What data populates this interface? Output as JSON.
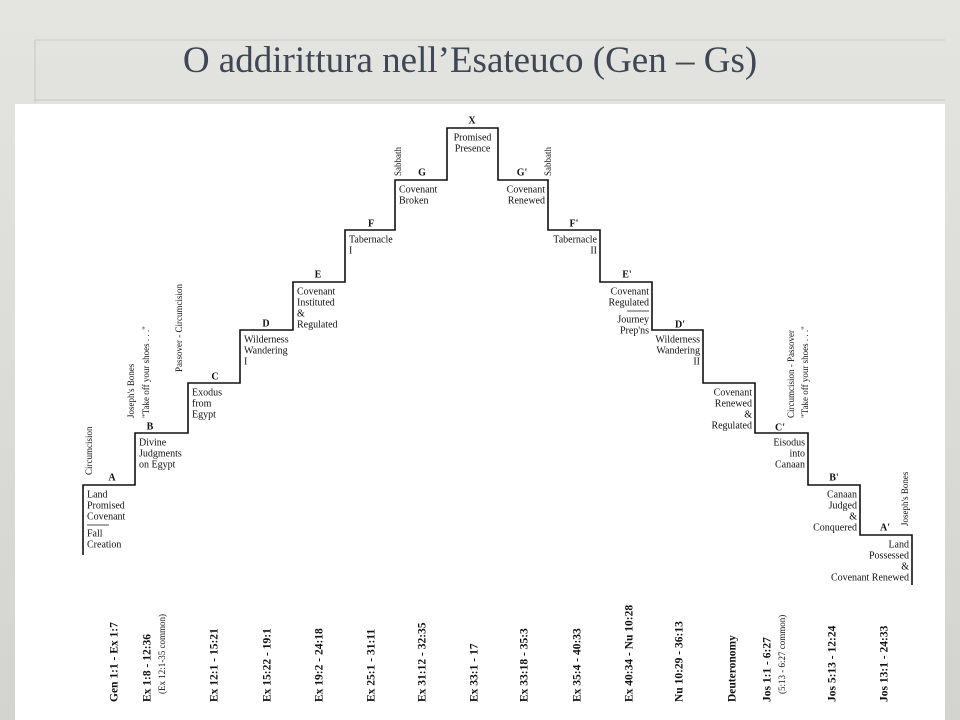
{
  "title": "O addirittura nell’Esateuco (Gen – Gs)",
  "steps": [
    {
      "letter": "A",
      "lines": [
        "Land",
        "Promised",
        "Covenant"
      ],
      "extra": [
        "Fall",
        "Creation"
      ],
      "notes": [
        "Circumcision"
      ]
    },
    {
      "letter": "B",
      "lines": [
        "Divine",
        "Judgments",
        "on Egypt"
      ],
      "notes": [
        "Joseph's Bones",
        "\"Take off your shoes . . .\""
      ]
    },
    {
      "letter": "C",
      "lines": [
        "Exodus",
        "from",
        "Egypt"
      ],
      "notes": [
        "Passover - Circumcision"
      ]
    },
    {
      "letter": "D",
      "lines": [
        "Wilderness",
        "Wandering",
        "I"
      ]
    },
    {
      "letter": "E",
      "lines": [
        "Covenant",
        "Instituted",
        "&",
        "Regulated"
      ]
    },
    {
      "letter": "F",
      "lines": [
        "Tabernacle",
        "I"
      ]
    },
    {
      "letter": "G",
      "lines": [
        "Covenant",
        "Broken"
      ],
      "notes": [
        "Sabbath"
      ]
    },
    {
      "letter": "X",
      "lines": [
        "Promised",
        "Presence"
      ]
    },
    {
      "letter": "G'",
      "lines": [
        "Covenant",
        "Renewed"
      ],
      "notes": [
        "Sabbath"
      ]
    },
    {
      "letter": "F'",
      "lines": [
        "Tabernacle",
        "II"
      ]
    },
    {
      "letter": "E'",
      "lines": [
        "Covenant",
        "Regulated"
      ],
      "extra": [
        "Journey",
        "Prep'ns"
      ]
    },
    {
      "letter": "D'",
      "lines": [
        "Wilderness",
        "Wandering",
        "II"
      ]
    },
    {
      "lines": [
        "Covenant",
        "Renewed",
        "&",
        "Regulated"
      ]
    },
    {
      "letter": "C'",
      "lines": [
        "Eisodus",
        "into",
        "Canaan"
      ],
      "notes": [
        "Circumcision - Passover",
        "\"Take off your shoes . . .\""
      ]
    },
    {
      "letter": "B'",
      "lines": [
        "Canaan",
        "Judged",
        "&",
        "Conquered"
      ]
    },
    {
      "letter": "A'",
      "lines": [
        "Land",
        "Possessed",
        "&",
        "Covenant Renewed"
      ],
      "notes": [
        "Joseph's Bones"
      ]
    }
  ],
  "references": [
    {
      "text": "Gen 1:1 - Ex 1:7"
    },
    {
      "text": "Ex 1:8 - 12:36",
      "note": "(Ex 12:1-35 common)"
    },
    {
      "text": "Ex 12:1 - 15:21"
    },
    {
      "text": "Ex 15:22 - 19:1"
    },
    {
      "text": "Ex 19:2 - 24:18"
    },
    {
      "text": "Ex 25:1 - 31:11"
    },
    {
      "text": "Ex 31:12 - 32:35"
    },
    {
      "text": "Ex 33:1 - 17"
    },
    {
      "text": "Ex 33:18 - 35:3"
    },
    {
      "text": "Ex 35:4 - 40:33"
    },
    {
      "text": "Ex 40:34 - Nu 10:28"
    },
    {
      "text": "Nu 10:29 - 36:13"
    },
    {
      "text": "Deuteronomy"
    },
    {
      "text": "Jos 1:1 - 6:27",
      "note": "(5:13 - 6:27 common)"
    },
    {
      "text": "Jos 5:13 - 12:24"
    },
    {
      "text": "Jos 13:1 - 24:33"
    }
  ]
}
